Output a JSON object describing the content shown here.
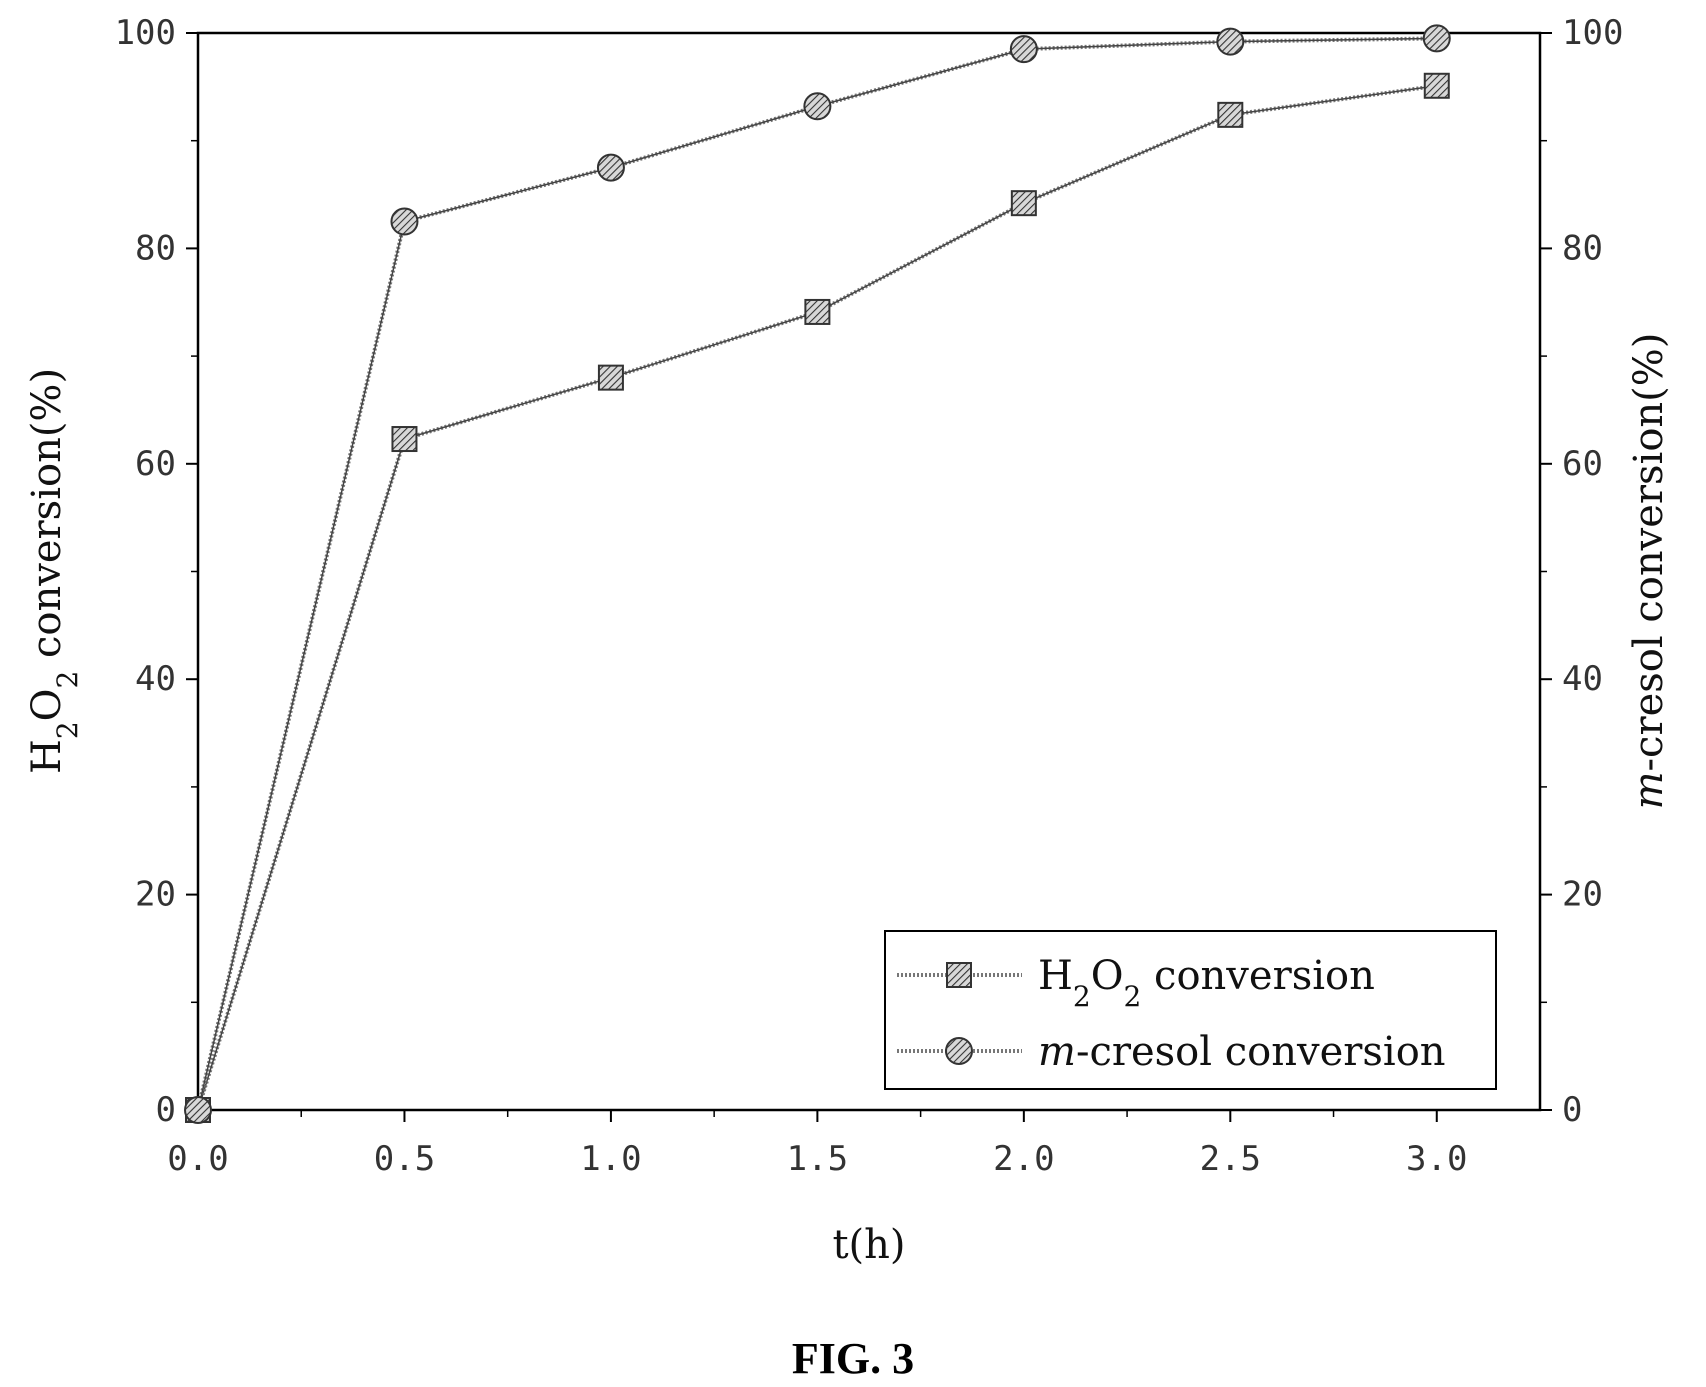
{
  "chart_data": {
    "type": "line",
    "x": [
      0.0,
      0.5,
      1.0,
      1.5,
      2.0,
      2.5,
      3.0
    ],
    "xlabel": "t(h)",
    "ylabel": "H2O2 conversion(%)",
    "y2label": "m-cresol conversion(%)",
    "xlim": [
      0.0,
      3.25
    ],
    "ylim": [
      0,
      100
    ],
    "y2lim": [
      0,
      100
    ],
    "x_ticks": [
      "0.0",
      "0.5",
      "1.0",
      "1.5",
      "2.0",
      "2.5",
      "3.0"
    ],
    "y_ticks": [
      "0",
      "20",
      "40",
      "60",
      "80",
      "100"
    ],
    "y2_ticks": [
      "0",
      "20",
      "40",
      "60",
      "80",
      "100"
    ],
    "grid": false,
    "legend_position": "bottom-right",
    "series": [
      {
        "name": "H2O2 conversion",
        "axis": "left",
        "marker": "square",
        "values": [
          0,
          62.3,
          68.0,
          74.1,
          84.2,
          92.4,
          95.1
        ]
      },
      {
        "name": "m-cresol conversion",
        "axis": "right",
        "marker": "circle",
        "values": [
          0,
          82.5,
          87.5,
          93.2,
          98.5,
          99.2,
          99.5
        ]
      }
    ]
  },
  "caption": "FIG. 3",
  "colors": {
    "line": "#555555",
    "axis": "#000000",
    "marker": "#444444"
  }
}
